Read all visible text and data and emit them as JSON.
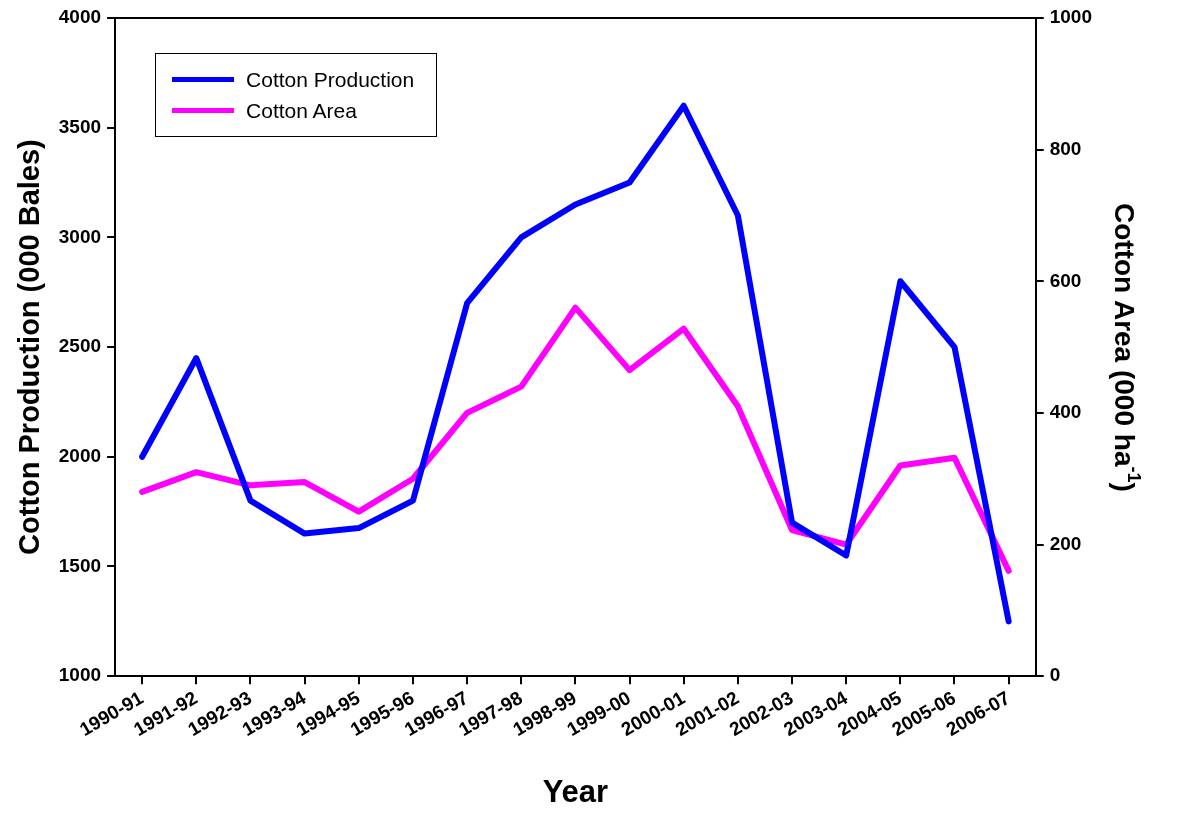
{
  "chart_data": {
    "type": "line",
    "xlabel": "Year",
    "ylabel": "Cotton Production (000 Bales)",
    "y2label": "Cotton Area (000 ha$^{-1}$)",
    "categories": [
      "1990-91",
      "1991-92",
      "1992-93",
      "1993-94",
      "1994-95",
      "1995-96",
      "1996-97",
      "1997-98",
      "1998-99",
      "1999-00",
      "2000-01",
      "2001-02",
      "2002-03",
      "2003-04",
      "2004-05",
      "2005-06",
      "2006-07"
    ],
    "series": [
      {
        "name": "Cotton Production",
        "color": "#0000ff",
        "values": [
          2000,
          2450,
          1800,
          1650,
          1675,
          1800,
          2700,
          3000,
          3150,
          3250,
          3600,
          3100,
          1700,
          1550,
          2800,
          2500,
          1250
        ]
      },
      {
        "name": "Cotton Area",
        "color": "#ff00ff",
        "axis": "y2",
        "values": [
          280,
          310,
          290,
          295,
          250,
          300,
          400,
          440,
          560,
          465,
          528,
          410,
          222,
          200,
          320,
          332,
          160
        ]
      }
    ],
    "ylim": [
      1000,
      4000
    ],
    "yticks": [
      1000,
      1500,
      2000,
      2500,
      3000,
      3500,
      4000
    ],
    "y2lim": [
      0,
      1000
    ],
    "y2ticks": [
      0,
      200,
      400,
      600,
      800,
      1000
    ],
    "grid": false,
    "legend": "top left",
    "marker": "none",
    "line_style": "solid"
  }
}
